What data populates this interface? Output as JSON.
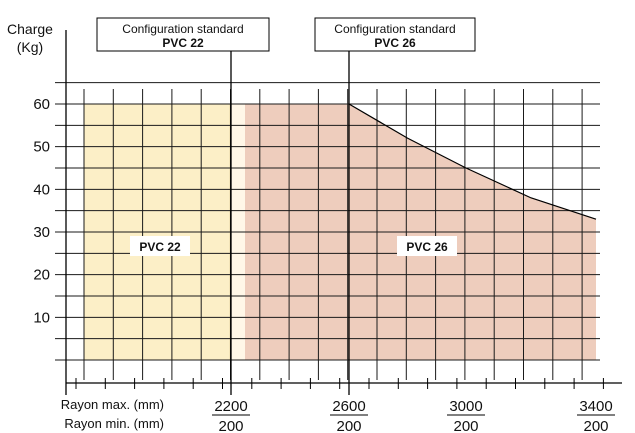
{
  "chart_data": {
    "type": "area",
    "ylabel_line1": "Charge",
    "ylabel_line2": "(Kg)",
    "yticks": [
      10,
      20,
      30,
      40,
      50,
      60
    ],
    "ylim": [
      0,
      60
    ],
    "xlim_rayon_max": [
      2200,
      3400
    ],
    "xlabel_max": "Rayon max. (mm)",
    "xlabel_min": "Rayon min. (mm)",
    "xticks": [
      {
        "max": "2200",
        "min": "200"
      },
      {
        "max": "2600",
        "min": "200"
      },
      {
        "max": "3000",
        "min": "200"
      },
      {
        "max": "3400",
        "min": "200"
      }
    ],
    "regions": [
      {
        "label": "PVC 22",
        "color": "#fcefc7",
        "x_start": 2200,
        "x_end": 2200,
        "points": [
          [
            2200,
            60
          ]
        ]
      },
      {
        "label": "PVC 26",
        "color": "#eecdbd",
        "x_start": 2200,
        "x_end": 3400,
        "points": [
          [
            2200,
            60
          ],
          [
            2600,
            60
          ],
          [
            2800,
            52
          ],
          [
            3000,
            45
          ],
          [
            3200,
            38
          ],
          [
            3400,
            33
          ]
        ]
      }
    ],
    "annotations": [
      {
        "title": "Configuration standard",
        "model": "PVC 22",
        "x": 2200
      },
      {
        "title": "Configuration standard",
        "model": "PVC 26",
        "x": 2600
      }
    ],
    "grid": true
  }
}
